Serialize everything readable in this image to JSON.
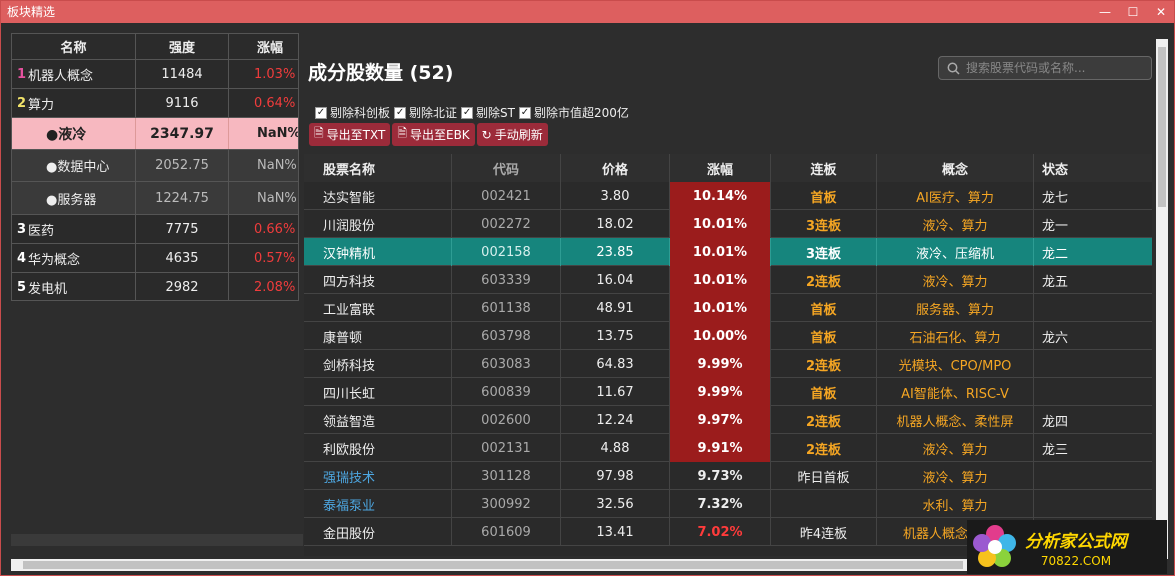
{
  "window": {
    "title": "板块精选"
  },
  "left": {
    "headers": [
      "名称",
      "强度",
      "涨幅"
    ],
    "rows": [
      {
        "rank": "1",
        "name": "机器人概念",
        "strength": "11484",
        "change": "1.03%"
      },
      {
        "rank": "2",
        "name": "算力",
        "strength": "9116",
        "change": "0.64%"
      },
      {
        "rank": "",
        "name": "●液冷",
        "strength": "2347.97",
        "change": "NaN%"
      },
      {
        "rank": "",
        "name": "●数据中心",
        "strength": "2052.75",
        "change": "NaN%"
      },
      {
        "rank": "",
        "name": "●服务器",
        "strength": "1224.75",
        "change": "NaN%"
      },
      {
        "rank": "3",
        "name": "医药",
        "strength": "7775",
        "change": "0.66%"
      },
      {
        "rank": "4",
        "name": "华为概念",
        "strength": "4635",
        "change": "0.57%"
      },
      {
        "rank": "5",
        "name": "发电机",
        "strength": "2982",
        "change": "2.08%"
      }
    ]
  },
  "main": {
    "title": "成分股数量 (52)",
    "search_placeholder": "搜索股票代码或名称...",
    "filters": [
      "剔除科创板",
      "剔除北证",
      "剔除ST",
      "剔除市值超200亿"
    ],
    "buttons": [
      "导出至TXT",
      "导出至EBK",
      "手动刷新"
    ],
    "columns": [
      "股票名称",
      "代码",
      "价格",
      "涨幅",
      "连板",
      "概念",
      "状态"
    ],
    "rows": [
      {
        "name": "达实智能",
        "code": "002421",
        "price": "3.80",
        "change": "10.14%",
        "streak": "首板",
        "concept": "AI医疗、算力",
        "status": "龙七"
      },
      {
        "name": "川润股份",
        "code": "002272",
        "price": "18.02",
        "change": "10.01%",
        "streak": "3连板",
        "concept": "液冷、算力",
        "status": "龙一"
      },
      {
        "name": "汉钟精机",
        "code": "002158",
        "price": "23.85",
        "change": "10.01%",
        "streak": "3连板",
        "concept": "液冷、压缩机",
        "status": "龙二"
      },
      {
        "name": "四方科技",
        "code": "603339",
        "price": "16.04",
        "change": "10.01%",
        "streak": "2连板",
        "concept": "液冷、算力",
        "status": "龙五"
      },
      {
        "name": "工业富联",
        "code": "601138",
        "price": "48.91",
        "change": "10.01%",
        "streak": "首板",
        "concept": "服务器、算力",
        "status": ""
      },
      {
        "name": "康普顿",
        "code": "603798",
        "price": "13.75",
        "change": "10.00%",
        "streak": "首板",
        "concept": "石油石化、算力",
        "status": "龙六"
      },
      {
        "name": "剑桥科技",
        "code": "603083",
        "price": "64.83",
        "change": "9.99%",
        "streak": "2连板",
        "concept": "光模块、CPO/MPO",
        "status": ""
      },
      {
        "name": "四川长虹",
        "code": "600839",
        "price": "11.67",
        "change": "9.99%",
        "streak": "首板",
        "concept": "AI智能体、RISC-V",
        "status": ""
      },
      {
        "name": "领益智造",
        "code": "002600",
        "price": "12.24",
        "change": "9.97%",
        "streak": "2连板",
        "concept": "机器人概念、柔性屏",
        "status": "龙四"
      },
      {
        "name": "利欧股份",
        "code": "002131",
        "price": "4.88",
        "change": "9.91%",
        "streak": "2连板",
        "concept": "液冷、算力",
        "status": "龙三"
      },
      {
        "name": "强瑞技术",
        "code": "301128",
        "price": "97.98",
        "change": "9.73%",
        "streak": "昨日首板",
        "concept": "液冷、算力",
        "status": ""
      },
      {
        "name": "泰福泵业",
        "code": "300992",
        "price": "32.56",
        "change": "7.32%",
        "streak": "",
        "concept": "水利、算力",
        "status": ""
      },
      {
        "name": "金田股份",
        "code": "601609",
        "price": "13.41",
        "change": "7.02%",
        "streak": "昨4连板",
        "concept": "机器人概念、算力",
        "status": ""
      }
    ]
  },
  "logo": {
    "main": "分析家公式网",
    "sub": "70822.COM"
  }
}
